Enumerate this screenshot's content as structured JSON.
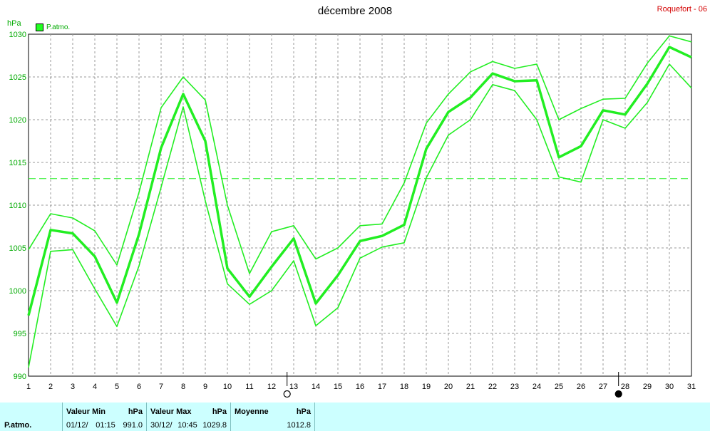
{
  "header": {
    "title": "décembre 2008",
    "station": "Roquefort - 06"
  },
  "legend": {
    "label": "P.atmo."
  },
  "chart_data": {
    "type": "line",
    "ylabel": "hPa",
    "ylim": [
      990,
      1030
    ],
    "yticks": [
      990,
      995,
      1000,
      1005,
      1010,
      1015,
      1020,
      1025,
      1030
    ],
    "xlim": [
      1,
      31
    ],
    "x": [
      1,
      2,
      3,
      4,
      5,
      6,
      7,
      8,
      9,
      10,
      11,
      12,
      13,
      14,
      15,
      16,
      17,
      18,
      19,
      20,
      21,
      22,
      23,
      24,
      25,
      26,
      27,
      28,
      29,
      30,
      31
    ],
    "grid": true,
    "reference_line": 1013.1,
    "moon_phases": [
      {
        "day": 12.7,
        "phase": "full"
      },
      {
        "day": 27.7,
        "phase": "new"
      }
    ],
    "series": [
      {
        "role": "max",
        "values": [
          1004.8,
          1009.0,
          1008.5,
          1007.0,
          1003.0,
          1011.5,
          1021.4,
          1025.0,
          1022.3,
          1010.0,
          1002.0,
          1006.9,
          1007.6,
          1003.7,
          1005.0,
          1007.6,
          1007.8,
          1012.6,
          1019.6,
          1023.0,
          1025.6,
          1026.8,
          1026.0,
          1026.5,
          1020.0,
          1021.3,
          1022.4,
          1022.5,
          1026.6,
          1029.8,
          1029.1
        ]
      },
      {
        "role": "mean",
        "values": [
          997.1,
          1007.1,
          1006.7,
          1004.0,
          998.6,
          1006.6,
          1016.7,
          1023.0,
          1017.5,
          1002.6,
          999.3,
          1002.8,
          1006.1,
          998.5,
          1001.8,
          1005.8,
          1006.4,
          1007.7,
          1016.6,
          1020.9,
          1022.6,
          1025.4,
          1024.5,
          1024.6,
          1015.6,
          1016.9,
          1021.1,
          1020.6,
          1024.2,
          1028.5,
          1027.3
        ]
      },
      {
        "role": "min",
        "values": [
          991.0,
          1004.6,
          1004.8,
          1000.2,
          995.8,
          1002.9,
          1012.1,
          1021.5,
          1010.5,
          1000.8,
          998.4,
          1000.0,
          1003.5,
          995.9,
          998.0,
          1003.8,
          1005.1,
          1005.6,
          1013.2,
          1018.2,
          1020.0,
          1024.1,
          1023.4,
          1020.0,
          1013.3,
          1012.7,
          1020.0,
          1019.0,
          1022.0,
          1026.5,
          1023.7
        ]
      }
    ]
  },
  "footer": {
    "row_label": "P.atmo.",
    "min": {
      "label": "Valeur Min",
      "unit": "hPa",
      "date": "01/12/",
      "time": "01:15",
      "value": "991.0"
    },
    "max": {
      "label": "Valeur Max",
      "unit": "hPa",
      "date": "30/12/",
      "time": "10:45",
      "value": "1029.8"
    },
    "avg": {
      "label": "Moyenne",
      "unit": "hPa",
      "value": "1012.8"
    }
  },
  "colors": {
    "line": "#22ee22",
    "grid": "#999999",
    "axis": "#000000",
    "footer_bg": "#ccffff"
  }
}
